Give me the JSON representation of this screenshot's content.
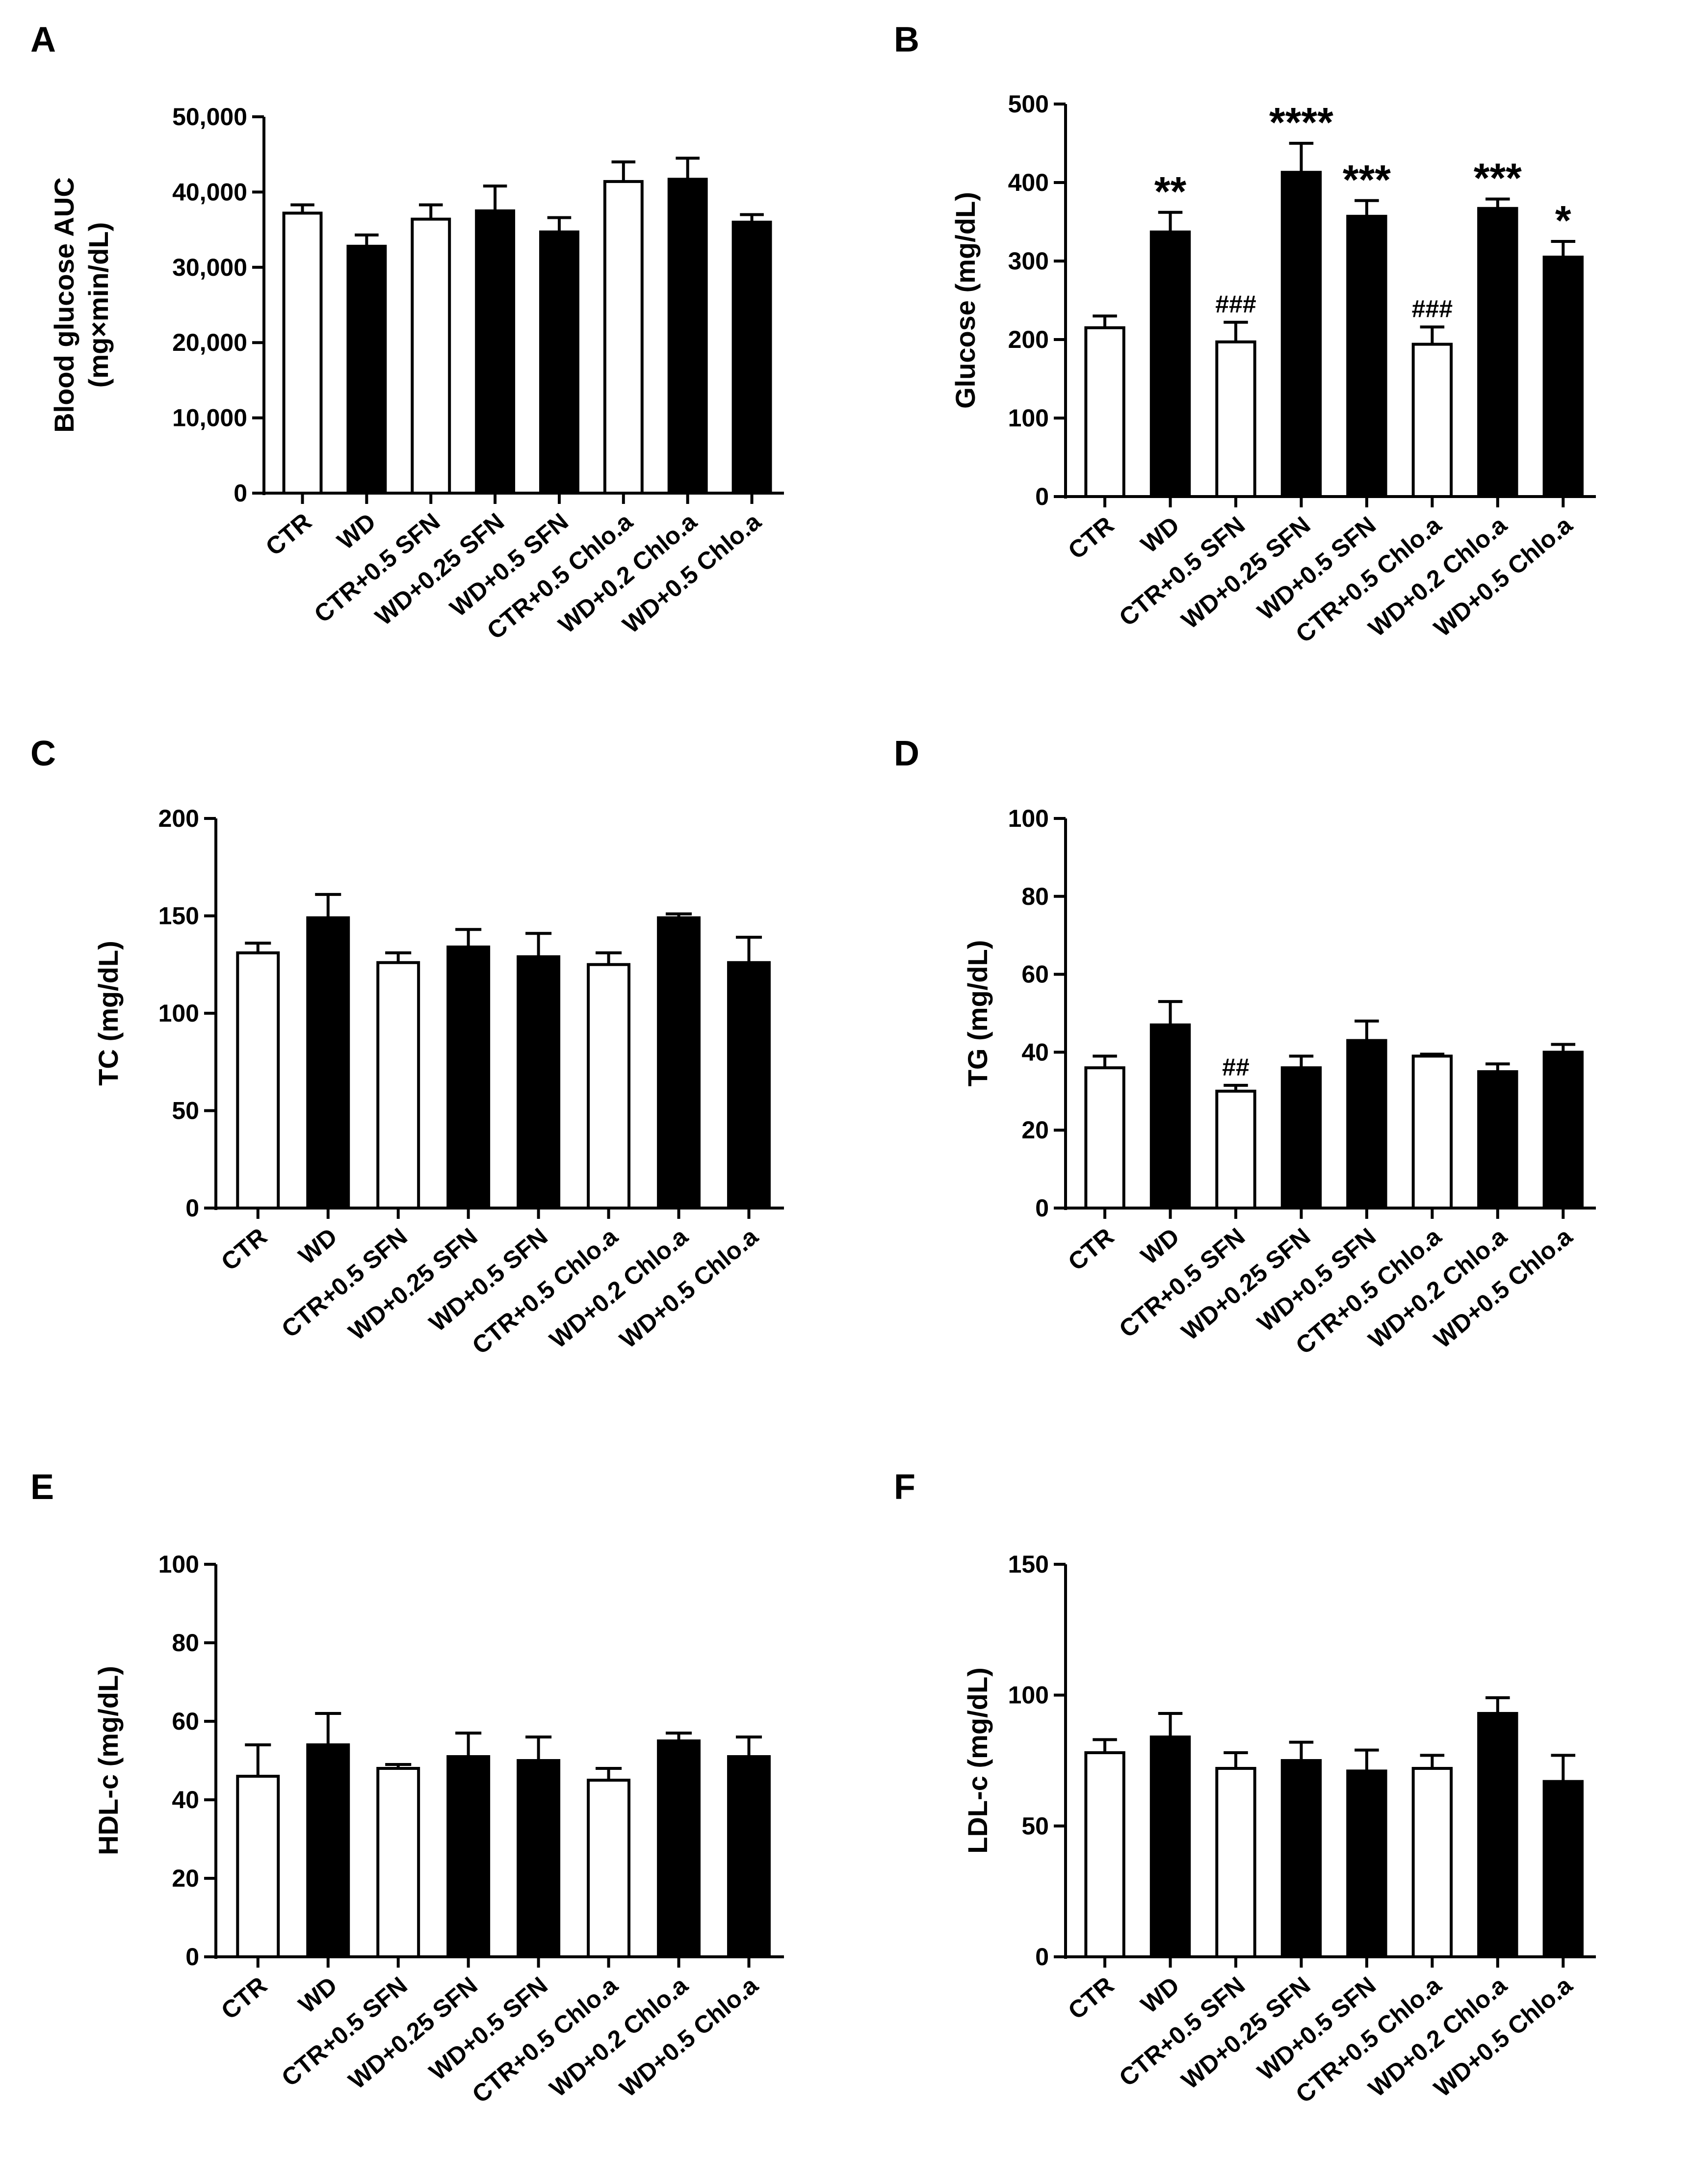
{
  "chart_data": [
    {
      "panel": "A",
      "type": "bar",
      "ylabel": "Blood glucose AUC",
      "ylabel2": "(mg×min/dL)",
      "ylim": [
        0,
        50000
      ],
      "yticks": [
        0,
        10000,
        20000,
        30000,
        40000,
        50000
      ],
      "ytick_labels": [
        "0",
        "10,000",
        "20,000",
        "30,000",
        "40,000",
        "50,000"
      ],
      "categories": [
        "CTR",
        "WD",
        "CTR+0.5 SFN",
        "WD+0.25 SFN",
        "WD+0.5 SFN",
        "CTR+0.5 Chlo.a",
        "WD+0.2 Chlo.a",
        "WD+0.5 Chlo.a"
      ],
      "fills": [
        "white",
        "black",
        "white",
        "black",
        "black",
        "white",
        "black",
        "black"
      ],
      "values": [
        37200,
        32800,
        36400,
        37500,
        34700,
        41400,
        41700,
        36000
      ],
      "errors": [
        1100,
        1500,
        1900,
        3300,
        1900,
        2600,
        2800,
        1000
      ],
      "annotations": [
        "",
        "",
        "",
        "",
        "",
        "",
        "",
        ""
      ]
    },
    {
      "panel": "B",
      "type": "bar",
      "ylabel": "Glucose (mg/dL)",
      "ylim": [
        0,
        500
      ],
      "yticks": [
        0,
        100,
        200,
        300,
        400,
        500
      ],
      "ytick_labels": [
        "0",
        "100",
        "200",
        "300",
        "400",
        "500"
      ],
      "categories": [
        "CTR",
        "WD",
        "CTR+0.5 SFN",
        "WD+0.25 SFN",
        "WD+0.5 SFN",
        "CTR+0.5 Chlo.a",
        "WD+0.2 Chlo.a",
        "WD+0.5 Chlo.a"
      ],
      "fills": [
        "white",
        "black",
        "white",
        "black",
        "black",
        "white",
        "black",
        "black"
      ],
      "values": [
        215,
        337,
        197,
        413,
        357,
        194,
        367,
        305
      ],
      "errors": [
        15,
        25,
        25,
        37,
        20,
        22,
        12,
        20
      ],
      "annotations": [
        "",
        "**",
        "###",
        "****",
        "***",
        "###",
        "***",
        "*"
      ]
    },
    {
      "panel": "C",
      "type": "bar",
      "ylabel": "TC (mg/dL)",
      "ylim": [
        0,
        200
      ],
      "yticks": [
        0,
        50,
        100,
        150,
        200
      ],
      "ytick_labels": [
        "0",
        "50",
        "100",
        "150",
        "200"
      ],
      "categories": [
        "CTR",
        "WD",
        "CTR+0.5 SFN",
        "WD+0.25 SFN",
        "WD+0.5 SFN",
        "CTR+0.5 Chlo.a",
        "WD+0.2 Chlo.a",
        "WD+0.5 Chlo.a"
      ],
      "fills": [
        "white",
        "black",
        "white",
        "black",
        "black",
        "white",
        "black",
        "black"
      ],
      "values": [
        131,
        149,
        126,
        134,
        129,
        125,
        149,
        126
      ],
      "errors": [
        5,
        12,
        5,
        9,
        12,
        6,
        2,
        13
      ],
      "annotations": [
        "",
        "",
        "",
        "",
        "",
        "",
        "",
        ""
      ]
    },
    {
      "panel": "D",
      "type": "bar",
      "ylabel": "TG (mg/dL)",
      "ylim": [
        0,
        100
      ],
      "yticks": [
        0,
        20,
        40,
        60,
        80,
        100
      ],
      "ytick_labels": [
        "0",
        "20",
        "40",
        "60",
        "80",
        "100"
      ],
      "categories": [
        "CTR",
        "WD",
        "CTR+0.5 SFN",
        "WD+0.25 SFN",
        "WD+0.5 SFN",
        "CTR+0.5 Chlo.a",
        "WD+0.2 Chlo.a",
        "WD+0.5 Chlo.a"
      ],
      "fills": [
        "white",
        "black",
        "white",
        "black",
        "black",
        "white",
        "black",
        "black"
      ],
      "values": [
        36,
        47,
        30,
        36,
        43,
        39,
        35,
        40
      ],
      "errors": [
        3,
        6,
        1.5,
        3,
        5,
        0.5,
        2,
        2
      ],
      "annotations": [
        "",
        "",
        "##",
        "",
        "",
        "",
        "",
        ""
      ]
    },
    {
      "panel": "E",
      "type": "bar",
      "ylabel": "HDL-c (mg/dL)",
      "ylim": [
        0,
        100
      ],
      "yticks": [
        0,
        20,
        40,
        60,
        80,
        100
      ],
      "ytick_labels": [
        "0",
        "20",
        "40",
        "60",
        "80",
        "100"
      ],
      "categories": [
        "CTR",
        "WD",
        "CTR+0.5 SFN",
        "WD+0.25 SFN",
        "WD+0.5 SFN",
        "CTR+0.5 Chlo.a",
        "WD+0.2 Chlo.a",
        "WD+0.5 Chlo.a"
      ],
      "fills": [
        "white",
        "black",
        "white",
        "black",
        "black",
        "white",
        "black",
        "black"
      ],
      "values": [
        46,
        54,
        48,
        51,
        50,
        45,
        55,
        51
      ],
      "errors": [
        8,
        8,
        1,
        6,
        6,
        3,
        2,
        5
      ],
      "annotations": [
        "",
        "",
        "",
        "",
        "",
        "",
        "",
        ""
      ]
    },
    {
      "panel": "F",
      "type": "bar",
      "ylabel": "LDL-c (mg/dL)",
      "ylim": [
        0,
        150
      ],
      "yticks": [
        0,
        50,
        100,
        150
      ],
      "ytick_labels": [
        "0",
        "50",
        "100",
        "150"
      ],
      "categories": [
        "CTR",
        "WD",
        "CTR+0.5 SFN",
        "WD+0.25 SFN",
        "WD+0.5 SFN",
        "CTR+0.5 Chlo.a",
        "WD+0.2 Chlo.a",
        "WD+0.5 Chlo.a"
      ],
      "fills": [
        "white",
        "black",
        "white",
        "black",
        "black",
        "white",
        "black",
        "black"
      ],
      "values": [
        78,
        84,
        72,
        75,
        71,
        72,
        93,
        67
      ],
      "errors": [
        5,
        9,
        6,
        7,
        8,
        5,
        6,
        10
      ],
      "annotations": [
        "",
        "",
        "",
        "",
        "",
        "",
        "",
        ""
      ]
    }
  ]
}
